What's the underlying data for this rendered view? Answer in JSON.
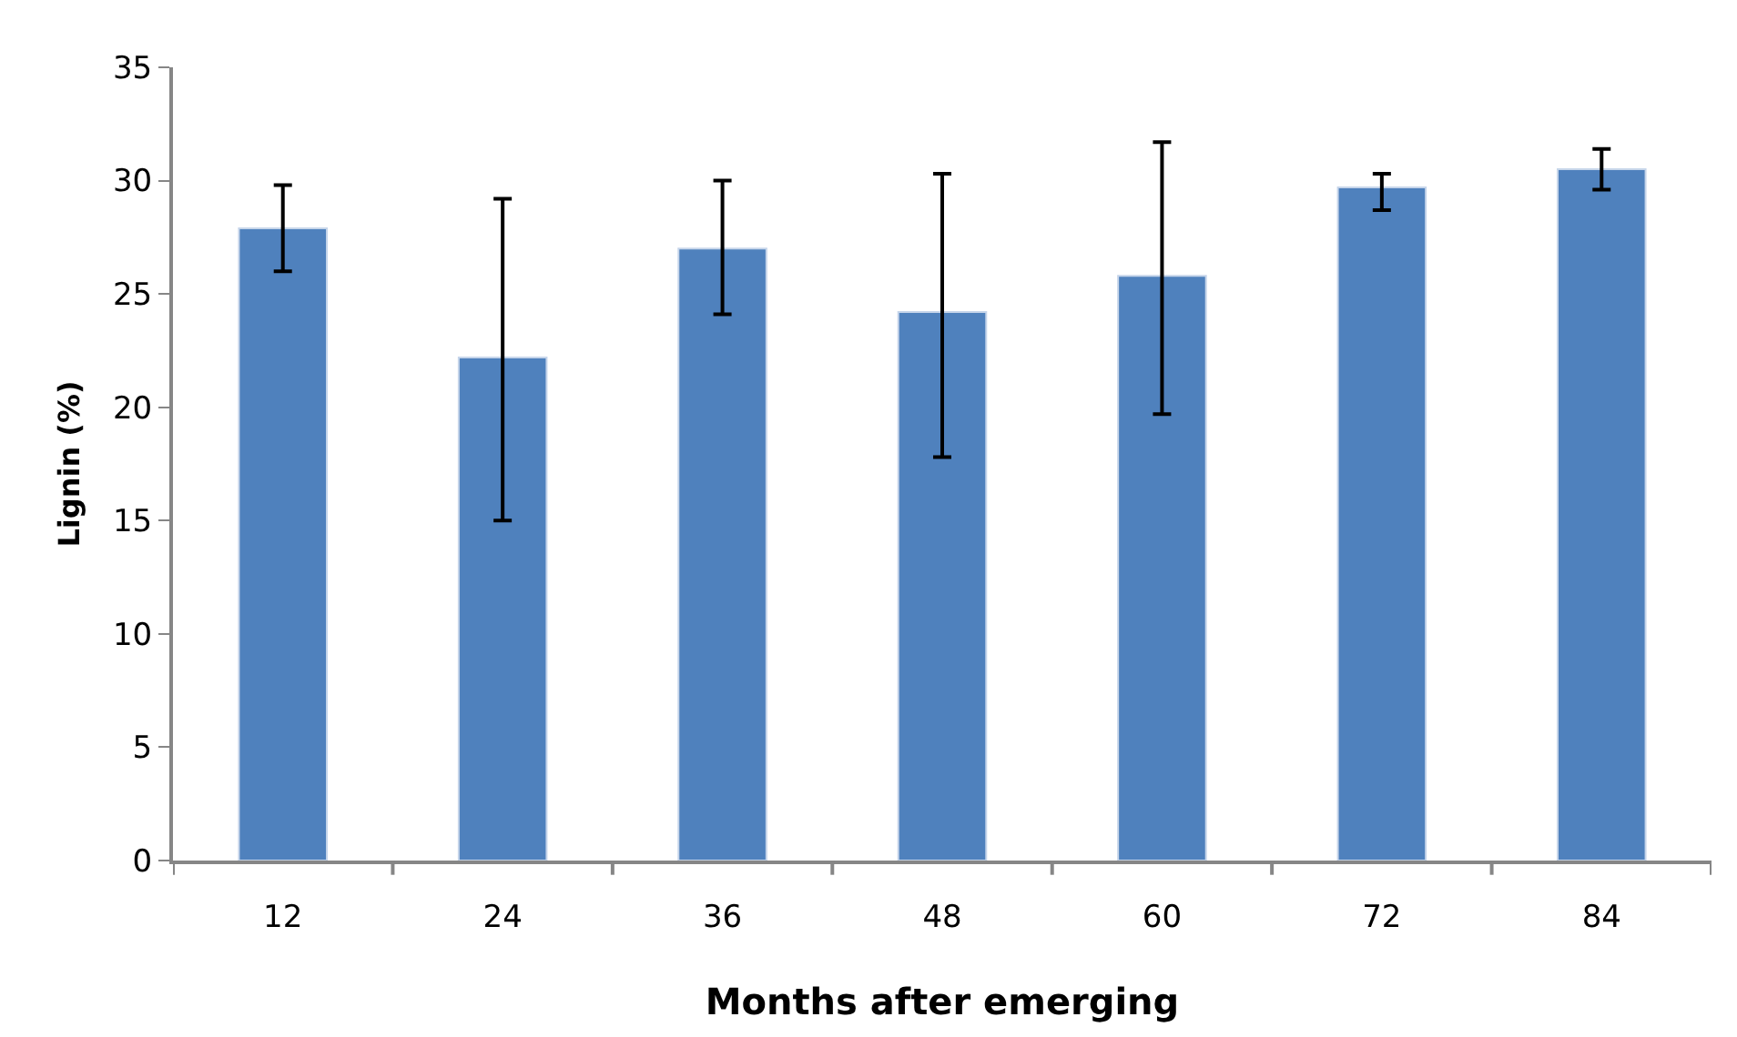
{
  "chart_data": {
    "type": "bar",
    "xlabel": "Months after emerging",
    "ylabel": "Lignin (%)",
    "categories": [
      "12",
      "24",
      "36",
      "48",
      "60",
      "72",
      "84"
    ],
    "values": [
      27.9,
      22.2,
      27.0,
      24.2,
      25.8,
      29.7,
      30.5
    ],
    "errors": [
      [
        26.0,
        29.8
      ],
      [
        15.0,
        29.2
      ],
      [
        24.1,
        30.0
      ],
      [
        17.8,
        30.3
      ],
      [
        19.7,
        31.7
      ],
      [
        28.7,
        30.3
      ],
      [
        29.6,
        31.4
      ]
    ],
    "color": "#4f81bd",
    "ylim": [
      0,
      35
    ],
    "yticks": [
      0,
      5,
      10,
      15,
      20,
      25,
      30,
      35
    ]
  }
}
